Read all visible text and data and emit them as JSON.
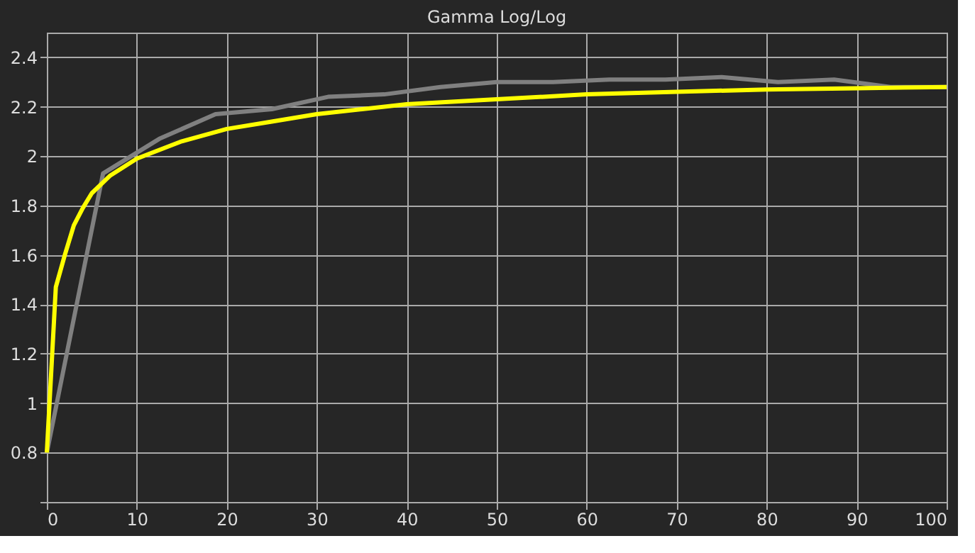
{
  "chart_data": {
    "type": "line",
    "title": "Gamma Log/Log",
    "xlim": [
      0,
      100
    ],
    "xticks": [
      0,
      10,
      20,
      30,
      40,
      50,
      60,
      70,
      80,
      90,
      100
    ],
    "ylim": [
      0.6,
      2.5
    ],
    "yticks": [
      {
        "value": 0.6,
        "label": null
      },
      0.8,
      1,
      1.2,
      1.4,
      1.6,
      1.8,
      2,
      2.2,
      2.4
    ],
    "grid": true,
    "marker": "none",
    "line_style": "solid",
    "series": [
      {
        "color": "#808080",
        "x": [
          0,
          6.25,
          12.5,
          18.75,
          25,
          31.25,
          37.5,
          43.75,
          50,
          56.25,
          62.5,
          68.75,
          75,
          81.25,
          87.5,
          93.75,
          100
        ],
        "values": [
          0.8,
          1.93,
          2.07,
          2.17,
          2.19,
          2.24,
          2.25,
          2.28,
          2.3,
          2.3,
          2.31,
          2.31,
          2.32,
          2.3,
          2.31,
          2.28,
          2.28
        ]
      },
      {
        "color": "#ffff00",
        "x": [
          0,
          1,
          2,
          3,
          4,
          5,
          7,
          10,
          15,
          20,
          25,
          30,
          40,
          50,
          60,
          70,
          80,
          90,
          100
        ],
        "values": [
          0.8,
          1.47,
          1.6,
          1.72,
          1.79,
          1.85,
          1.92,
          1.99,
          2.06,
          2.11,
          2.14,
          2.17,
          2.21,
          2.23,
          2.25,
          2.26,
          2.27,
          2.275,
          2.28
        ]
      }
    ]
  }
}
